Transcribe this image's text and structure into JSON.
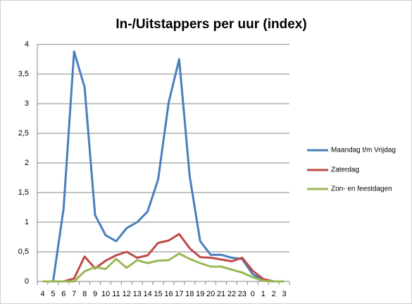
{
  "chart_data": {
    "type": "line",
    "title": "In-/Uitstappers per uur (index)",
    "categories": [
      "4",
      "5",
      "6",
      "7",
      "8",
      "9",
      "10",
      "11",
      "12",
      "13",
      "14",
      "15",
      "16",
      "17",
      "18",
      "19",
      "20",
      "21",
      "22",
      "23",
      "0",
      "1",
      "2",
      "3"
    ],
    "series": [
      {
        "name": "Maandag t/m Vrijdag",
        "color": "#4a7ebb",
        "values": [
          0,
          0,
          1.23,
          3.88,
          3.28,
          1.12,
          0.78,
          0.68,
          0.9,
          1.0,
          1.18,
          1.72,
          3.02,
          3.75,
          1.78,
          0.68,
          0.45,
          0.45,
          0.4,
          0.38,
          0.12,
          0.02,
          0,
          0
        ]
      },
      {
        "name": "Zaterdag",
        "color": "#be4b48",
        "values": [
          0,
          0,
          0,
          0.05,
          0.42,
          0.22,
          0.35,
          0.44,
          0.5,
          0.4,
          0.44,
          0.65,
          0.69,
          0.8,
          0.56,
          0.41,
          0.4,
          0.37,
          0.34,
          0.4,
          0.18,
          0.04,
          0,
          0
        ]
      },
      {
        "name": "Zon- en feestdagen",
        "color": "#98b954",
        "values": [
          0,
          0,
          0,
          0,
          0.17,
          0.24,
          0.21,
          0.38,
          0.23,
          0.36,
          0.31,
          0.35,
          0.36,
          0.47,
          0.38,
          0.31,
          0.25,
          0.25,
          0.2,
          0.15,
          0.07,
          0.01,
          0,
          0
        ]
      }
    ],
    "ylim": [
      0,
      4
    ],
    "yticks": [
      0,
      {
        "value": 0.5,
        "label": "0,5"
      },
      1,
      {
        "value": 1.5,
        "label": "1,5"
      },
      2,
      {
        "value": 2.5,
        "label": "2,5"
      },
      3,
      {
        "value": 3.5,
        "label": "3,5"
      },
      4
    ],
    "grid": true,
    "legend": "right"
  }
}
